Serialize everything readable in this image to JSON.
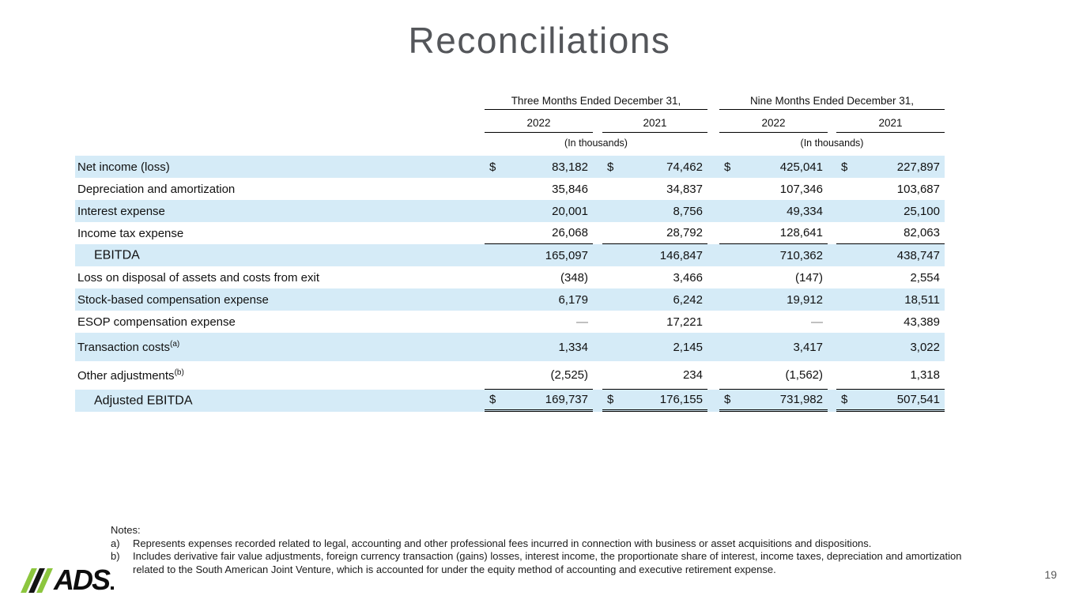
{
  "slide": {
    "title": "Reconciliations",
    "page_number": "19",
    "logo_text": "ADS"
  },
  "table": {
    "col_groups": [
      {
        "label": "Three Months Ended December 31,"
      },
      {
        "label": "Nine Months Ended December 31,"
      }
    ],
    "years": [
      "2022",
      "2021",
      "2022",
      "2021"
    ],
    "in_thousands_left": "(In thousands)",
    "in_thousands_right": "(In thousands)",
    "rows": [
      {
        "label": "Net income (loss)",
        "sup": "",
        "indent": false,
        "dollar": true,
        "shaded": true,
        "tall": false,
        "underline_below": false,
        "double_underline_below": false,
        "values": [
          "83,182",
          "74,462",
          "425,041",
          "227,897"
        ]
      },
      {
        "label": "Depreciation and amortization",
        "sup": "",
        "indent": false,
        "dollar": false,
        "shaded": false,
        "tall": false,
        "underline_below": false,
        "double_underline_below": false,
        "values": [
          "35,846",
          "34,837",
          "107,346",
          "103,687"
        ]
      },
      {
        "label": "Interest expense",
        "sup": "",
        "indent": false,
        "dollar": false,
        "shaded": true,
        "tall": false,
        "underline_below": false,
        "double_underline_below": false,
        "values": [
          "20,001",
          "8,756",
          "49,334",
          "25,100"
        ]
      },
      {
        "label": "Income tax expense",
        "sup": "",
        "indent": false,
        "dollar": false,
        "shaded": false,
        "tall": false,
        "underline_below": true,
        "double_underline_below": false,
        "values": [
          "26,068",
          "28,792",
          "128,641",
          "82,063"
        ]
      },
      {
        "label": "EBITDA",
        "sup": "",
        "indent": true,
        "dollar": false,
        "shaded": true,
        "tall": false,
        "underline_below": false,
        "double_underline_below": false,
        "values": [
          "165,097",
          "146,847",
          "710,362",
          "438,747"
        ]
      },
      {
        "label": "Loss on disposal of assets and costs from exit",
        "sup": "",
        "indent": false,
        "dollar": false,
        "shaded": false,
        "tall": false,
        "underline_below": false,
        "double_underline_below": false,
        "values": [
          "(348)",
          "3,466",
          "(147)",
          "2,554"
        ]
      },
      {
        "label": "Stock-based compensation expense",
        "sup": "",
        "indent": false,
        "dollar": false,
        "shaded": true,
        "tall": false,
        "underline_below": false,
        "double_underline_below": false,
        "values": [
          "6,179",
          "6,242",
          "19,912",
          "18,511"
        ]
      },
      {
        "label": "ESOP compensation expense",
        "sup": "",
        "indent": false,
        "dollar": false,
        "shaded": false,
        "tall": false,
        "underline_below": false,
        "double_underline_below": false,
        "values": [
          "—",
          "17,221",
          "—",
          "43,389"
        ]
      },
      {
        "label": "Transaction costs",
        "sup": "(a)",
        "indent": false,
        "dollar": false,
        "shaded": true,
        "tall": true,
        "underline_below": false,
        "double_underline_below": false,
        "values": [
          "1,334",
          "2,145",
          "3,417",
          "3,022"
        ]
      },
      {
        "label": "Other adjustments",
        "sup": "(b)",
        "indent": false,
        "dollar": false,
        "shaded": false,
        "tall": true,
        "underline_below": true,
        "double_underline_below": false,
        "values": [
          "(2,525)",
          "234",
          "(1,562)",
          "1,318"
        ]
      },
      {
        "label": "Adjusted EBITDA",
        "sup": "",
        "indent": true,
        "dollar": true,
        "shaded": true,
        "tall": false,
        "underline_below": false,
        "double_underline_below": true,
        "values": [
          "169,737",
          "176,155",
          "731,982",
          "507,541"
        ]
      }
    ]
  },
  "notes": {
    "heading": "Notes:",
    "items": [
      {
        "marker": "a)",
        "text": "Represents expenses recorded related to legal, accounting and other professional fees incurred in connection with business or asset acquisitions and dispositions."
      },
      {
        "marker": "b)",
        "text": "Includes derivative fair value adjustments, foreign currency transaction (gains) losses, interest income, the proportionate share of interest, income taxes, depreciation and amortization related to the South American Joint Venture, which is accounted for under the equity method of accounting and executive retirement expense."
      }
    ]
  },
  "colors": {
    "row_shade": "#D5EBF7",
    "title_gray": "#54565A",
    "brand_green": "#8CC63E"
  }
}
